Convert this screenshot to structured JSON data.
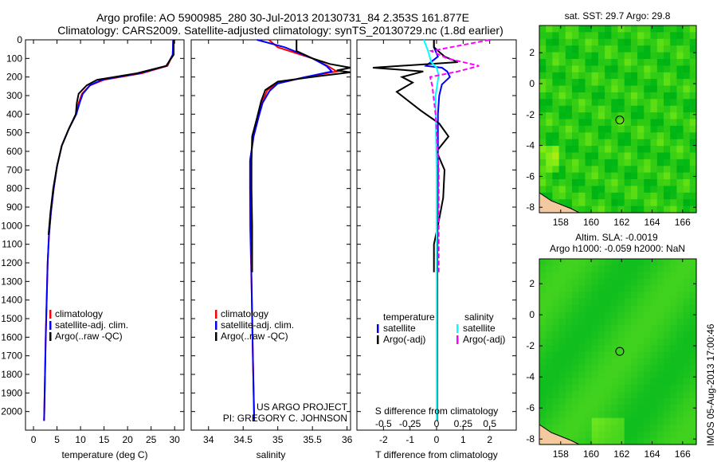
{
  "title": {
    "line1": "Argo profile: AO 5900985_280 30-Jul-2013 20130731_84 2.353S 161.877E",
    "line2": "Climatology: CARS2009. Satellite-adjusted climatology: synTS_20130729.nc (1.8d earlier)"
  },
  "credit": {
    "line1": "US ARGO PROJECT",
    "line2": "PI: GREGORY C. JOHNSON"
  },
  "stamp": "IMOS 05-Aug-2013 17:00:46",
  "colors": {
    "climatology": "#ff0000",
    "satellite": "#0000ff",
    "argo": "#000000",
    "sal_satellite": "#00ffff",
    "sal_argo": "#ff00ff"
  },
  "chart_data": [
    {
      "type": "line",
      "name": "temperature-profile",
      "xlabel": "temperature (deg C)",
      "ylabel": "",
      "xlim": [
        -1.7,
        32
      ],
      "ylim": [
        2100,
        0
      ],
      "xticks": [
        0,
        5,
        10,
        15,
        20,
        25,
        30
      ],
      "yticks": [
        0,
        100,
        200,
        300,
        400,
        500,
        600,
        700,
        800,
        900,
        1000,
        1100,
        1200,
        1300,
        1400,
        1500,
        1600,
        1700,
        1800,
        1900,
        2000
      ],
      "legend": [
        "climatology",
        "satellite-adj. clim.",
        "Argo(..raw -QC)"
      ],
      "series": [
        {
          "name": "climatology",
          "color": "#ff0000",
          "points": [
            [
              29.7,
              0
            ],
            [
              29.6,
              80
            ],
            [
              28.5,
              140
            ],
            [
              23,
              180
            ],
            [
              15,
              215
            ],
            [
              12,
              245
            ],
            [
              10.3,
              290
            ],
            [
              9.6,
              340
            ],
            [
              9,
              400
            ],
            [
              7.5,
              480
            ],
            [
              6,
              570
            ],
            [
              5,
              680
            ],
            [
              4.3,
              800
            ],
            [
              3.7,
              930
            ],
            [
              3.3,
              1050
            ],
            [
              3,
              1200
            ],
            [
              2.8,
              1400
            ],
            [
              2.6,
              1600
            ],
            [
              2.45,
              1800
            ],
            [
              2.3,
              2000
            ],
            [
              2.25,
              2050
            ]
          ]
        },
        {
          "name": "satellite-adj. clim.",
          "color": "#0000ff",
          "points": [
            [
              29.7,
              0
            ],
            [
              29.6,
              80
            ],
            [
              28.3,
              140
            ],
            [
              22.5,
              180
            ],
            [
              14.5,
              215
            ],
            [
              12,
              245
            ],
            [
              10.5,
              290
            ],
            [
              9.8,
              340
            ],
            [
              9.1,
              400
            ],
            [
              7.5,
              480
            ],
            [
              6,
              570
            ],
            [
              5,
              680
            ],
            [
              4.3,
              800
            ],
            [
              3.7,
              930
            ],
            [
              3.3,
              1050
            ],
            [
              3,
              1200
            ],
            [
              2.8,
              1400
            ],
            [
              2.6,
              1600
            ],
            [
              2.45,
              1800
            ],
            [
              2.3,
              2000
            ],
            [
              2.25,
              2050
            ]
          ]
        },
        {
          "name": "Argo(..raw -QC)",
          "color": "#000000",
          "points": [
            [
              29.8,
              0
            ],
            [
              29.8,
              80
            ],
            [
              28.2,
              140
            ],
            [
              22,
              180
            ],
            [
              13.5,
              215
            ],
            [
              11.3,
              245
            ],
            [
              9.6,
              290
            ],
            [
              9.2,
              340
            ],
            [
              9,
              400
            ],
            [
              7.5,
              480
            ],
            [
              6,
              570
            ],
            [
              5,
              680
            ],
            [
              4.2,
              800
            ],
            [
              3.6,
              930
            ],
            [
              3.2,
              1050
            ]
          ]
        }
      ]
    },
    {
      "type": "line",
      "name": "salinity-profile",
      "xlabel": "salinity",
      "xlim": [
        33.75,
        36.05
      ],
      "ylim": [
        2100,
        0
      ],
      "xticks": [
        34,
        34.5,
        35,
        35.5,
        36
      ],
      "legend": [
        "climatology",
        "satellite-adj. clim.",
        "Argo(..raw -QC)"
      ],
      "series": [
        {
          "name": "climatology",
          "color": "#ff0000",
          "points": [
            [
              34.87,
              0
            ],
            [
              35.0,
              40
            ],
            [
              35.5,
              100
            ],
            [
              35.72,
              140
            ],
            [
              35.85,
              170
            ],
            [
              35.4,
              200
            ],
            [
              35.0,
              235
            ],
            [
              34.85,
              270
            ],
            [
              34.78,
              330
            ],
            [
              34.72,
              420
            ],
            [
              34.65,
              520
            ],
            [
              34.6,
              650
            ],
            [
              34.6,
              800
            ],
            [
              34.6,
              1000
            ],
            [
              34.62,
              1300
            ],
            [
              34.64,
              1700
            ],
            [
              34.66,
              2050
            ]
          ]
        },
        {
          "name": "satellite-adj. clim.",
          "color": "#0000ff",
          "points": [
            [
              34.7,
              0
            ],
            [
              35.1,
              40
            ],
            [
              35.5,
              100
            ],
            [
              35.7,
              140
            ],
            [
              35.78,
              170
            ],
            [
              35.4,
              200
            ],
            [
              35.0,
              235
            ],
            [
              34.88,
              275
            ],
            [
              34.78,
              340
            ],
            [
              34.72,
              420
            ],
            [
              34.65,
              520
            ],
            [
              34.6,
              650
            ],
            [
              34.6,
              800
            ],
            [
              34.61,
              1000
            ],
            [
              34.62,
              1300
            ],
            [
              34.64,
              1700
            ],
            [
              34.66,
              2050
            ]
          ]
        },
        {
          "name": "Argo(..raw -QC)",
          "color": "#000000",
          "points": [
            [
              35.27,
              0
            ],
            [
              35.27,
              60
            ],
            [
              35.5,
              100
            ],
            [
              35.75,
              130
            ],
            [
              36.05,
              150
            ],
            [
              35.85,
              165
            ],
            [
              36.05,
              175
            ],
            [
              35.6,
              195
            ],
            [
              35.0,
              225
            ],
            [
              34.82,
              270
            ],
            [
              34.76,
              330
            ],
            [
              34.7,
              420
            ],
            [
              34.63,
              520
            ],
            [
              34.62,
              650
            ],
            [
              34.62,
              800
            ],
            [
              34.63,
              1000
            ],
            [
              34.63,
              1250
            ]
          ]
        }
      ]
    },
    {
      "type": "line",
      "name": "difference-profile",
      "xlabel": "T difference from climatology",
      "x2label": "S difference from climatology",
      "xlim": [
        -3,
        3
      ],
      "x2lim": [
        -0.75,
        0.75
      ],
      "ylim": [
        2100,
        0
      ],
      "xticks": [
        -2,
        -1,
        0,
        1,
        2
      ],
      "x2ticks": [
        -0.5,
        -0.25,
        0,
        0.25,
        0.5
      ],
      "legend": {
        "temperature_header": "temperature",
        "salinity_header": "salinity",
        "t_satellite": "satellite",
        "t_argo": "Argo(-adj)",
        "s_satellite": "satellite",
        "s_argo": "Argo(-adj)"
      },
      "series": [
        {
          "name": "T satellite",
          "color": "#0000ff",
          "points": [
            [
              -0.1,
              0
            ],
            [
              -0.1,
              40
            ],
            [
              0.05,
              90
            ],
            [
              -0.4,
              140
            ],
            [
              0.2,
              150
            ],
            [
              0.4,
              170
            ],
            [
              0.5,
              200
            ],
            [
              0.2,
              240
            ],
            [
              0.1,
              300
            ],
            [
              0.05,
              400
            ],
            [
              0.05,
              700
            ],
            [
              0.03,
              1200
            ],
            [
              0.02,
              2050
            ]
          ]
        },
        {
          "name": "T Argo(-adj)",
          "color": "#000000",
          "points": [
            [
              -0.1,
              0
            ],
            [
              -0.1,
              40
            ],
            [
              0.3,
              90
            ],
            [
              0.8,
              120
            ],
            [
              -2.4,
              150
            ],
            [
              -0.5,
              170
            ],
            [
              -1.3,
              200
            ],
            [
              -0.9,
              230
            ],
            [
              -1.5,
              280
            ],
            [
              -0.6,
              380
            ],
            [
              0.1,
              450
            ],
            [
              0.45,
              520
            ],
            [
              0.0,
              600
            ],
            [
              0.3,
              700
            ],
            [
              0.25,
              850
            ],
            [
              0.05,
              1000
            ],
            [
              -0.1,
              1100
            ],
            [
              -0.1,
              1250
            ]
          ]
        },
        {
          "name": "S satellite",
          "color": "#00ffff",
          "points": [
            [
              -0.12,
              0
            ],
            [
              -0.08,
              60
            ],
            [
              -0.05,
              120
            ],
            [
              0.0,
              150
            ],
            [
              0.02,
              190
            ],
            [
              -0.01,
              300
            ],
            [
              0.0,
              700
            ],
            [
              0.0,
              1200
            ],
            [
              0.0,
              2050
            ]
          ]
        },
        {
          "name": "S Argo(-adj)",
          "color": "#ff00ff",
          "points": [
            [
              0.5,
              0
            ],
            [
              -0.05,
              60
            ],
            [
              0.1,
              100
            ],
            [
              0.4,
              140
            ],
            [
              0.2,
              170
            ],
            [
              -0.06,
              200
            ],
            [
              -0.04,
              250
            ],
            [
              -0.01,
              400
            ],
            [
              0.02,
              700
            ],
            [
              0.02,
              1000
            ],
            [
              0.02,
              1250
            ]
          ]
        }
      ]
    },
    {
      "type": "heatmap",
      "name": "sst-map",
      "title": "sat. SST: 29.7 Argo: 29.8",
      "xlim": [
        156.6,
        166.9
      ],
      "ylim": [
        -8.35,
        3.76
      ],
      "xticks": [
        158,
        160,
        162,
        164,
        166
      ],
      "yticks": [
        2,
        0,
        -2,
        -4,
        -6,
        -8
      ],
      "marker": {
        "lon": 161.877,
        "lat": -2.353
      }
    },
    {
      "type": "heatmap",
      "name": "sla-map",
      "title": "Altim. SLA: -0.0019",
      "subtitle": "Argo h1000: -0.059 h2000: NaN",
      "xlim": [
        156.6,
        166.9
      ],
      "ylim": [
        -8.35,
        3.6
      ],
      "xticks": [
        158,
        160,
        162,
        164,
        166
      ],
      "yticks": [
        2,
        0,
        -2,
        -4,
        -6,
        -8
      ],
      "marker": {
        "lon": 161.877,
        "lat": -2.353
      }
    }
  ]
}
